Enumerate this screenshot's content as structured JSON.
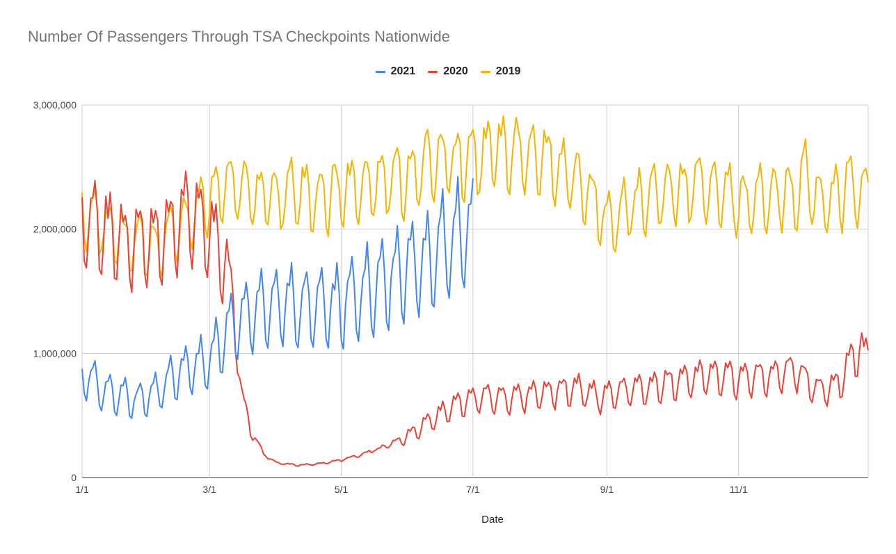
{
  "chart_data": {
    "type": "line",
    "title": "Number Of Passengers Through TSA Checkpoints Nationwide",
    "xlabel": "Date",
    "ylabel": "",
    "ylim": [
      0,
      3000000
    ],
    "xlim_day_of_year": [
      0,
      364
    ],
    "grid": true,
    "legend_position": "top-center",
    "x_ticks": [
      {
        "label": "1/1",
        "day": 0
      },
      {
        "label": "3/1",
        "day": 59
      },
      {
        "label": "5/1",
        "day": 120
      },
      {
        "label": "7/1",
        "day": 181
      },
      {
        "label": "9/1",
        "day": 243
      },
      {
        "label": "11/1",
        "day": 304
      }
    ],
    "y_ticks": [
      {
        "label": "0",
        "value": 0
      },
      {
        "label": "1,000,000",
        "value": 1000000
      },
      {
        "label": "2,000,000",
        "value": 2000000
      },
      {
        "label": "3,000,000",
        "value": 3000000
      }
    ],
    "series": [
      {
        "name": "2021",
        "color": "#4285F4",
        "weekly_pattern": [
          1.05,
          0.8,
          0.75,
          0.95,
          1.1,
          1.12,
          1.22
        ],
        "trend": [
          [
            0,
            850000
          ],
          [
            10,
            700000
          ],
          [
            25,
            620000
          ],
          [
            35,
            700000
          ],
          [
            45,
            850000
          ],
          [
            59,
            950000
          ],
          [
            70,
            1250000
          ],
          [
            80,
            1350000
          ],
          [
            90,
            1400000
          ],
          [
            105,
            1380000
          ],
          [
            115,
            1380000
          ],
          [
            120,
            1400000
          ],
          [
            130,
            1500000
          ],
          [
            140,
            1600000
          ],
          [
            150,
            1700000
          ],
          [
            160,
            1760000
          ],
          [
            170,
            1900000
          ],
          [
            178,
            2000000
          ],
          [
            181,
            2000000
          ]
        ]
      },
      {
        "name": "2020",
        "color": "#EA4335",
        "weekly_pattern": [
          1.06,
          0.84,
          0.8,
          0.96,
          1.12,
          1.08,
          1.14
        ],
        "trend": [
          [
            0,
            2100000
          ],
          [
            20,
            1900000
          ],
          [
            35,
            1900000
          ],
          [
            50,
            2150000
          ],
          [
            60,
            2000000
          ],
          [
            66,
            1750000
          ],
          [
            70,
            1400000
          ],
          [
            74,
            650000
          ],
          [
            78,
            400000
          ],
          [
            84,
            190000
          ],
          [
            90,
            120000
          ],
          [
            100,
            100000
          ],
          [
            110,
            110000
          ],
          [
            120,
            140000
          ],
          [
            130,
            190000
          ],
          [
            140,
            250000
          ],
          [
            150,
            330000
          ],
          [
            160,
            440000
          ],
          [
            170,
            560000
          ],
          [
            180,
            630000
          ],
          [
            190,
            650000
          ],
          [
            200,
            640000
          ],
          [
            210,
            680000
          ],
          [
            220,
            700000
          ],
          [
            230,
            720000
          ],
          [
            240,
            650000
          ],
          [
            250,
            700000
          ],
          [
            260,
            720000
          ],
          [
            270,
            750000
          ],
          [
            280,
            790000
          ],
          [
            290,
            830000
          ],
          [
            300,
            800000
          ],
          [
            310,
            800000
          ],
          [
            320,
            820000
          ],
          [
            330,
            880000
          ],
          [
            340,
            700000
          ],
          [
            350,
            750000
          ],
          [
            360,
            1050000
          ],
          [
            364,
            950000
          ]
        ]
      },
      {
        "name": "2019",
        "color": "#F4B400",
        "weekly_pattern": [
          1.04,
          0.9,
          0.88,
          0.97,
          1.07,
          1.08,
          1.1
        ],
        "trend": [
          [
            0,
            2150000
          ],
          [
            20,
            1900000
          ],
          [
            35,
            1850000
          ],
          [
            50,
            2100000
          ],
          [
            60,
            2250000
          ],
          [
            70,
            2350000
          ],
          [
            80,
            2250000
          ],
          [
            90,
            2250000
          ],
          [
            100,
            2300000
          ],
          [
            110,
            2250000
          ],
          [
            120,
            2300000
          ],
          [
            130,
            2350000
          ],
          [
            140,
            2400000
          ],
          [
            150,
            2400000
          ],
          [
            160,
            2500000
          ],
          [
            170,
            2550000
          ],
          [
            180,
            2500000
          ],
          [
            185,
            2600000
          ],
          [
            195,
            2620000
          ],
          [
            205,
            2600000
          ],
          [
            215,
            2570000
          ],
          [
            225,
            2450000
          ],
          [
            235,
            2300000
          ],
          [
            240,
            2100000
          ],
          [
            245,
            2050000
          ],
          [
            255,
            2200000
          ],
          [
            265,
            2250000
          ],
          [
            275,
            2300000
          ],
          [
            285,
            2350000
          ],
          [
            295,
            2300000
          ],
          [
            305,
            2200000
          ],
          [
            315,
            2250000
          ],
          [
            325,
            2300000
          ],
          [
            330,
            2200000
          ],
          [
            335,
            2450000
          ],
          [
            340,
            2200000
          ],
          [
            350,
            2250000
          ],
          [
            358,
            2350000
          ],
          [
            364,
            2300000
          ]
        ]
      }
    ]
  }
}
